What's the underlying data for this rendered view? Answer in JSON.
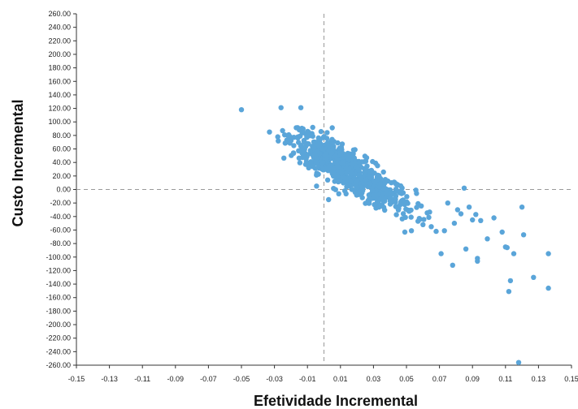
{
  "chart_data": {
    "type": "scatter",
    "xlabel": "Efetividade Incremental",
    "ylabel": "Custo Incremental",
    "xlim": [
      -0.15,
      0.15
    ],
    "ylim": [
      -260,
      260
    ],
    "x_ticks": [
      "-0.15",
      "-0.13",
      "-0.11",
      "-0.09",
      "-0.07",
      "-0.05",
      "-0.03",
      "-0.01",
      "0.01",
      "0.03",
      "0.05",
      "0.07",
      "0.09",
      "0.11",
      "0.13",
      "0.15"
    ],
    "y_ticks": [
      "260.00",
      "240.00",
      "220.00",
      "200.00",
      "180.00",
      "160.00",
      "140.00",
      "120.00",
      "100.00",
      "80.00",
      "60.00",
      "40.00",
      "20.00",
      "0.00",
      "-20.00",
      "-40.00",
      "-60.00",
      "-80.00",
      "-100.00",
      "-120.00",
      "-140.00",
      "-160.00",
      "-180.00",
      "-200.00",
      "-220.00",
      "-240.00",
      "-260.00"
    ],
    "reference_lines": {
      "x": 0.0,
      "y": 0.0,
      "style": "dashed"
    },
    "marker_color": "#5aa5d9",
    "grid": false,
    "cluster": {
      "count": 760,
      "center_x": 0.012,
      "center_y": 32,
      "x_range": [
        -0.03,
        0.07
      ],
      "y_range": [
        -65,
        95
      ],
      "slope": -1450
    },
    "points": [
      {
        "x": -0.05,
        "y": 118
      },
      {
        "x": -0.026,
        "y": 121
      },
      {
        "x": -0.014,
        "y": 121
      },
      {
        "x": -0.033,
        "y": 85
      },
      {
        "x": -0.028,
        "y": 78
      },
      {
        "x": 0.085,
        "y": 2
      },
      {
        "x": 0.092,
        "y": -37
      },
      {
        "x": 0.095,
        "y": -46
      },
      {
        "x": 0.099,
        "y": -73
      },
      {
        "x": 0.103,
        "y": -42
      },
      {
        "x": 0.108,
        "y": -63
      },
      {
        "x": 0.11,
        "y": -85
      },
      {
        "x": 0.111,
        "y": -86
      },
      {
        "x": 0.115,
        "y": -95
      },
      {
        "x": 0.12,
        "y": -26
      },
      {
        "x": 0.121,
        "y": -67
      },
      {
        "x": 0.136,
        "y": -95
      },
      {
        "x": 0.136,
        "y": -146
      },
      {
        "x": 0.093,
        "y": -102
      },
      {
        "x": 0.093,
        "y": -106
      },
      {
        "x": 0.086,
        "y": -88
      },
      {
        "x": 0.078,
        "y": -112
      },
      {
        "x": 0.071,
        "y": -95
      },
      {
        "x": 0.112,
        "y": -151
      },
      {
        "x": 0.113,
        "y": -135
      },
      {
        "x": 0.127,
        "y": -130
      },
      {
        "x": 0.118,
        "y": -256
      },
      {
        "x": 0.083,
        "y": -36
      },
      {
        "x": 0.081,
        "y": -30
      },
      {
        "x": 0.09,
        "y": -45
      },
      {
        "x": 0.075,
        "y": -20
      },
      {
        "x": 0.079,
        "y": -50
      },
      {
        "x": 0.088,
        "y": -26
      },
      {
        "x": 0.068,
        "y": -62
      },
      {
        "x": 0.073,
        "y": -61
      },
      {
        "x": 0.065,
        "y": -55
      },
      {
        "x": 0.06,
        "y": -52
      },
      {
        "x": 0.057,
        "y": -47
      },
      {
        "x": 0.049,
        "y": -63
      },
      {
        "x": 0.053,
        "y": -61
      }
    ]
  }
}
